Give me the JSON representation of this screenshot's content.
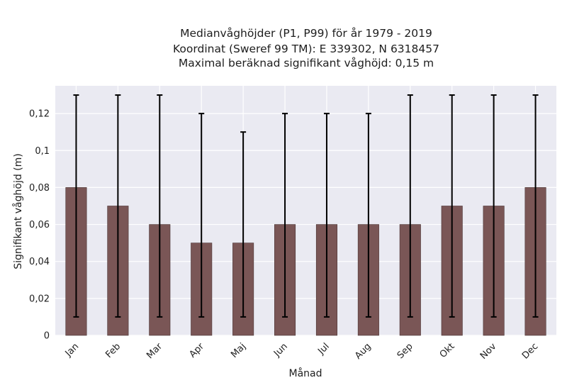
{
  "chart_data": {
    "type": "bar",
    "title_lines": [
      "Medianvåghöjder (P1, P99) för år 1979 - 2019",
      "Koordinat (Sweref 99 TM): E 339302, N 6318457",
      "Maximal beräknad signifikant våghöjd: 0,15 m"
    ],
    "xlabel": "Månad",
    "ylabel": "Signifikant våghöjd (m)",
    "categories": [
      "Jan",
      "Feb",
      "Mar",
      "Apr",
      "Maj",
      "Jun",
      "Jul",
      "Aug",
      "Sep",
      "Okt",
      "Nov",
      "Dec"
    ],
    "values": [
      0.08,
      0.07,
      0.06,
      0.05,
      0.05,
      0.06,
      0.06,
      0.06,
      0.06,
      0.07,
      0.07,
      0.08
    ],
    "p1": [
      0.01,
      0.01,
      0.01,
      0.01,
      0.01,
      0.01,
      0.01,
      0.01,
      0.01,
      0.01,
      0.01,
      0.01
    ],
    "p99": [
      0.13,
      0.13,
      0.13,
      0.12,
      0.11,
      0.12,
      0.12,
      0.12,
      0.13,
      0.13,
      0.13,
      0.13
    ],
    "ylim": [
      0,
      0.135
    ],
    "yticks": [
      0,
      0.02,
      0.04,
      0.06,
      0.08,
      0.1,
      0.12
    ],
    "ytick_labels": [
      "0",
      "0,02",
      "0,04",
      "0,06",
      "0,08",
      "0,1",
      "0,12"
    ],
    "grid": true,
    "colors": {
      "bar": "#7a5656",
      "plot_bg": "#eaeaf2",
      "grid": "#ffffff",
      "errorbar": "#000000"
    }
  }
}
